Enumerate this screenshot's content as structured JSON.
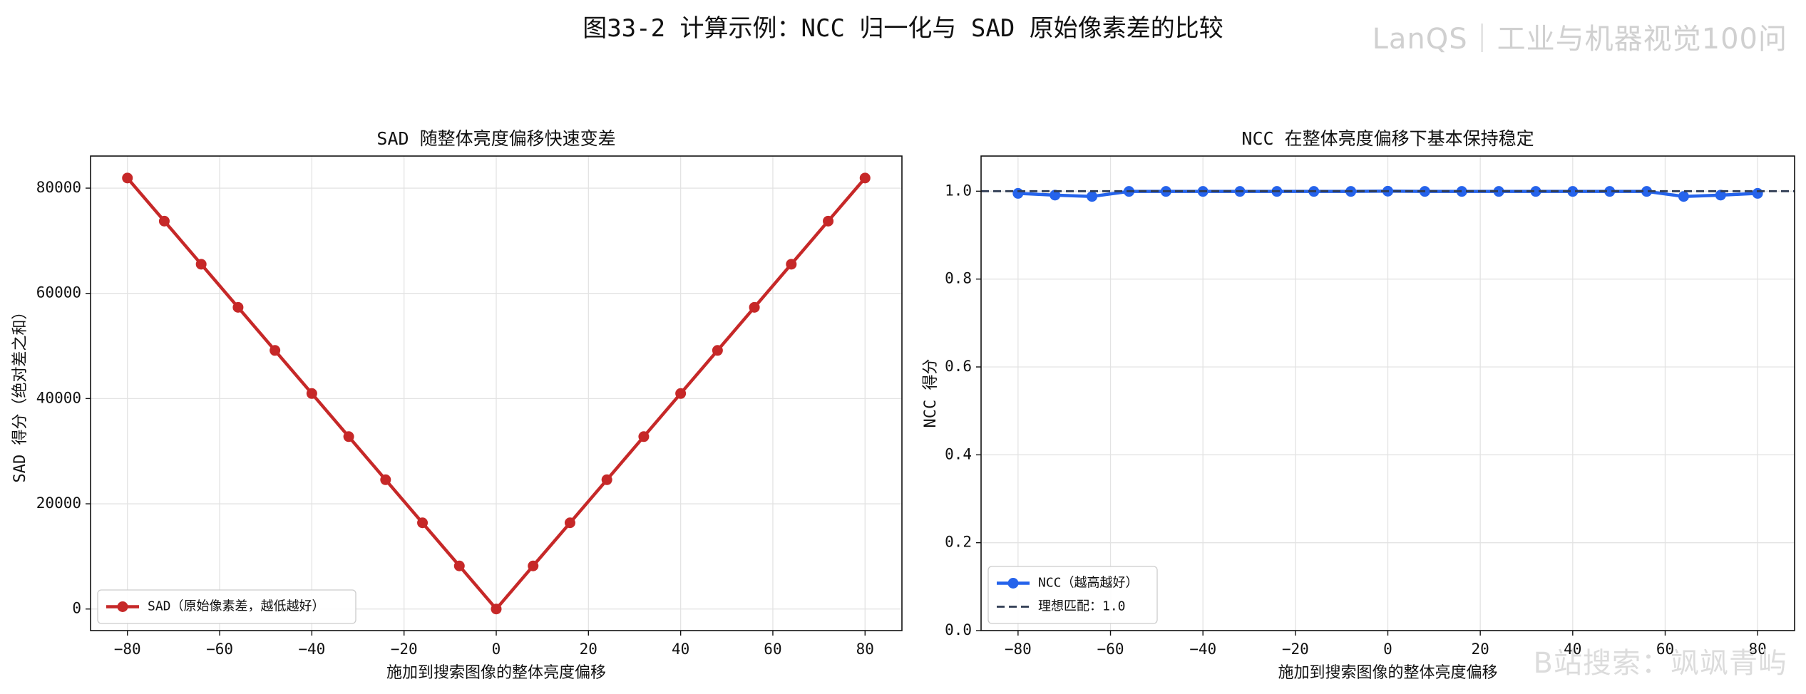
{
  "figure": {
    "title": "图33-2 计算示例：NCC 归一化与 SAD 原始像素差的比较",
    "watermark_top": "LanQS｜工业与机器视觉100问",
    "watermark_bottom": "B站搜索：飒飒青屿"
  },
  "chart_data": [
    {
      "type": "line",
      "title": "SAD 随整体亮度偏移快速变差",
      "xlabel": "施加到搜索图像的整体亮度偏移",
      "ylabel": "SAD 得分（绝对差之和）",
      "xlim": [
        -88,
        88
      ],
      "ylim": [
        -4100,
        86100
      ],
      "xticks": [
        -80,
        -60,
        -40,
        -20,
        0,
        20,
        40,
        60,
        80
      ],
      "xtick_labels": [
        "−80",
        "−60",
        "−40",
        "−20",
        "0",
        "20",
        "40",
        "60",
        "80"
      ],
      "yticks": [
        0,
        20000,
        40000,
        60000,
        80000
      ],
      "ytick_labels": [
        "0",
        "20000",
        "40000",
        "60000",
        "80000"
      ],
      "grid": true,
      "legend_position": "lower-left",
      "x": [
        -80,
        -72,
        -64,
        -56,
        -48,
        -40,
        -32,
        -24,
        -16,
        -8,
        0,
        8,
        16,
        24,
        32,
        40,
        48,
        56,
        64,
        72,
        80
      ],
      "series": [
        {
          "name": "SAD（原始像素差，越低越好）",
          "color": "#c62828",
          "marker": "circle",
          "style": "solid",
          "values": [
            81920,
            73728,
            65536,
            57344,
            49152,
            40960,
            32768,
            24576,
            16384,
            8192,
            0,
            8192,
            16384,
            24576,
            32768,
            40960,
            49152,
            57344,
            65536,
            73728,
            81920
          ]
        }
      ]
    },
    {
      "type": "line",
      "title": "NCC 在整体亮度偏移下基本保持稳定",
      "xlabel": "施加到搜索图像的整体亮度偏移",
      "ylabel": "NCC 得分",
      "xlim": [
        -88,
        88
      ],
      "ylim": [
        0,
        1.08
      ],
      "xticks": [
        -80,
        -60,
        -40,
        -20,
        0,
        20,
        40,
        60,
        80
      ],
      "xtick_labels": [
        "−80",
        "−60",
        "−40",
        "−20",
        "0",
        "20",
        "40",
        "60",
        "80"
      ],
      "yticks": [
        0,
        0.2,
        0.4,
        0.6,
        0.8,
        1.0
      ],
      "ytick_labels": [
        "0.0",
        "0.2",
        "0.4",
        "0.6",
        "0.8",
        "1.0"
      ],
      "grid": true,
      "legend_position": "lower-left",
      "x": [
        -80,
        -72,
        -64,
        -56,
        -48,
        -40,
        -32,
        -24,
        -16,
        -8,
        0,
        8,
        16,
        24,
        32,
        40,
        48,
        56,
        64,
        72,
        80
      ],
      "series": [
        {
          "name": "NCC（越高越好）",
          "color": "#2563eb",
          "marker": "circle",
          "style": "solid",
          "values": [
            0.995,
            0.991,
            0.988,
            0.9995,
            0.9995,
            0.9995,
            0.9995,
            0.9995,
            0.9995,
            0.9995,
            1.0,
            0.9995,
            0.9995,
            0.9995,
            0.9995,
            0.9995,
            0.9995,
            0.9995,
            0.988,
            0.991,
            0.995
          ]
        },
        {
          "name": "理想匹配：1.0",
          "color": "#2f3b52",
          "marker": "none",
          "style": "dashed",
          "hline": 1.0
        }
      ]
    }
  ]
}
